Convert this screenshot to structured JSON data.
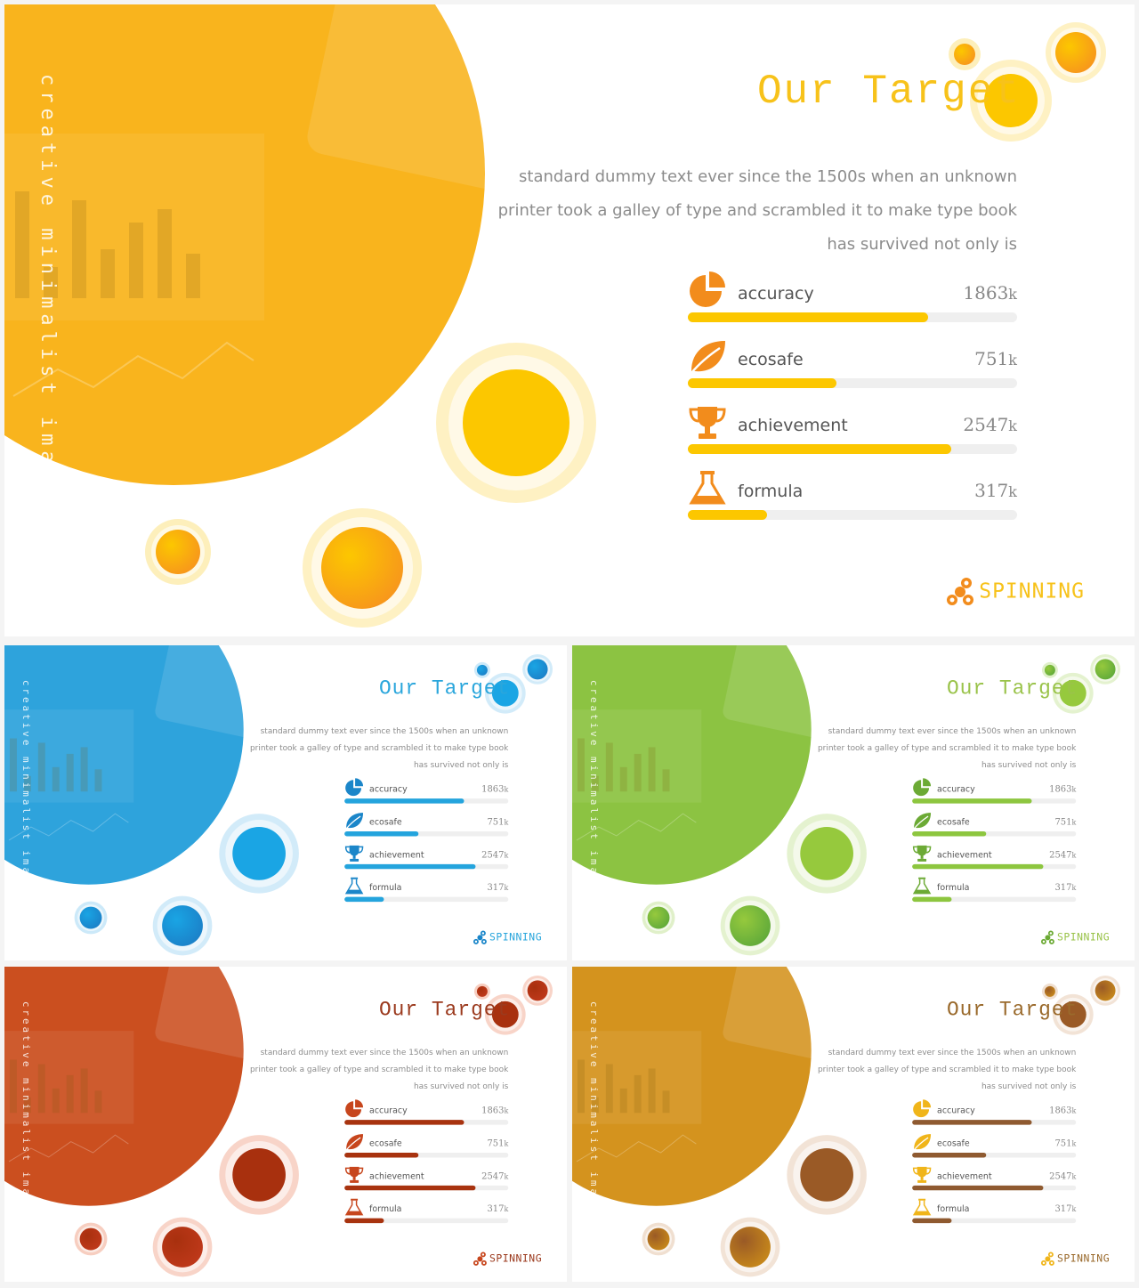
{
  "slide": {
    "vertical_caption": "creative minimalist image layout",
    "title": "Our Target",
    "description": [
      "standard dummy text ever since the 1500s when an unknown",
      "printer took a galley of type and scrambled it to make type book",
      "has survived  not only is"
    ],
    "stats": [
      {
        "label": "accuracy",
        "value": "1863",
        "unit": "k",
        "progress": 0.73,
        "icon": "pie-chart-icon"
      },
      {
        "label": "ecosafe",
        "value": "751",
        "unit": "k",
        "progress": 0.45,
        "icon": "leaf-icon"
      },
      {
        "label": "achievement",
        "value": "2547",
        "unit": "k",
        "progress": 0.8,
        "icon": "trophy-icon"
      },
      {
        "label": "formula",
        "value": "317",
        "unit": "k",
        "progress": 0.24,
        "icon": "flask-icon"
      }
    ],
    "brand": "SPINNING"
  },
  "themes": [
    {
      "name": "yellow",
      "main": "#f9b41d",
      "accent": "#fcc700",
      "dark": "#f7941d",
      "light": "#fdebaa",
      "title": "#f7c21a",
      "icon": "#f28c1c",
      "bar": "#fcc700"
    },
    {
      "name": "blue",
      "main": "#2ea3dc",
      "accent": "#1aa5e4",
      "dark": "#1b7fc7",
      "light": "#bfe3f7",
      "title": "#2aa6dc",
      "icon": "#1b86c9",
      "bar": "#24a4dd"
    },
    {
      "name": "green",
      "main": "#8cc342",
      "accent": "#96c93d",
      "dark": "#5ea93a",
      "light": "#d8ecbb",
      "title": "#9ac34a",
      "icon": "#6caa35",
      "bar": "#8dc63f"
    },
    {
      "name": "red",
      "main": "#cb4f1f",
      "accent": "#a8300e",
      "dark": "#c0391b",
      "light": "#f5c2b0",
      "title": "#9b3a1e",
      "icon": "#c7461d",
      "bar": "#a8330f"
    },
    {
      "name": "amber",
      "main": "#d4931e",
      "accent": "#9a5a26",
      "dark": "#c98a1a",
      "light": "#ecd7c4",
      "title": "#9a6a2c",
      "icon": "#f0b51a",
      "bar": "#8f5a30"
    }
  ]
}
